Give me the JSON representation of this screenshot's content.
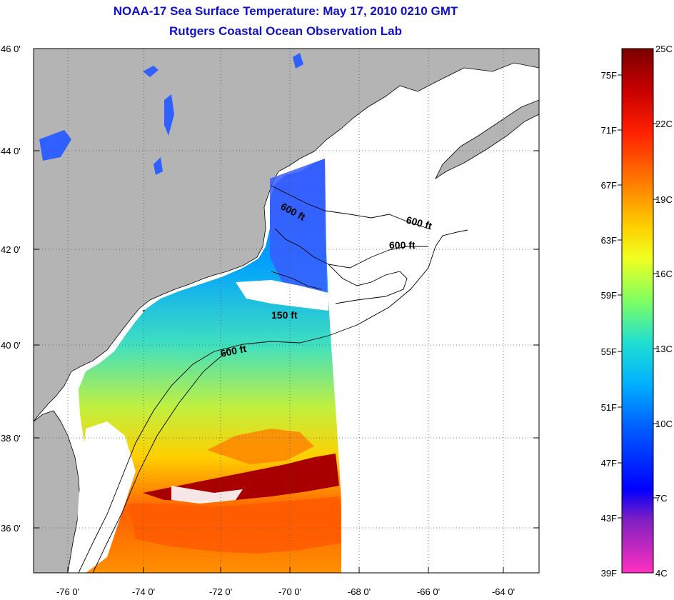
{
  "title_line1": "NOAA-17 Sea Surface Temperature:  May 17, 2010 0210 GMT",
  "title_line2": "Rutgers Coastal Ocean Observation Lab",
  "latitude_ticks": [
    "36 0'",
    "38 0'",
    "40 0'",
    "42 0'",
    "44 0'",
    "46 0'"
  ],
  "longitude_ticks": [
    "-76 0'",
    "-74 0'",
    "-72 0'",
    "-70 0'",
    "-68 0'",
    "-66 0'",
    "-64 0'"
  ],
  "contour_labels": [
    "600 ft",
    "600 ft",
    "600 ft",
    "150 ft",
    "600 ft"
  ],
  "colorbar": {
    "fahrenheit": [
      "75F",
      "71F",
      "67F",
      "63F",
      "59F",
      "55F",
      "51F",
      "47F",
      "43F",
      "39F"
    ],
    "celsius": [
      "25C",
      "22C",
      "19C",
      "16C",
      "13C",
      "10C",
      "7C",
      "4C"
    ],
    "gradient_colors": [
      "#7a0000",
      "#c80000",
      "#ff2000",
      "#ff8000",
      "#ffd000",
      "#f0ff20",
      "#80ff60",
      "#20e0d0",
      "#00b0ff",
      "#0060ff",
      "#0000ff",
      "#8020c0",
      "#ff30c0"
    ]
  },
  "colors": {
    "land": "#b4b4b4",
    "title": "#1010c8",
    "no_data": "#ffffff"
  }
}
